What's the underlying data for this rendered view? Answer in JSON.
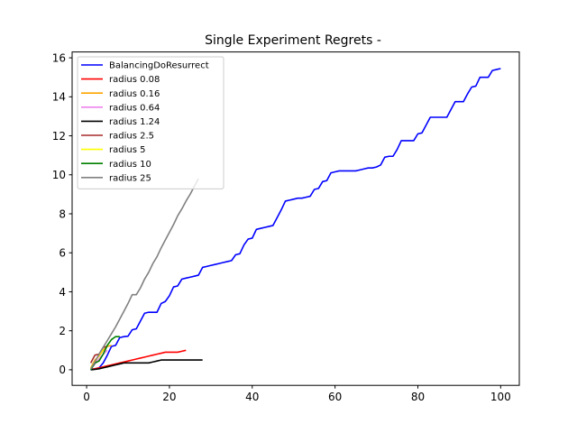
{
  "chart_data": {
    "type": "line",
    "title": "Single Experiment Regrets -",
    "xlabel": "",
    "ylabel": "",
    "xlim": [
      -3.5,
      104.5
    ],
    "ylim": [
      -0.8,
      16.3
    ],
    "xticks": [
      0,
      20,
      40,
      60,
      80,
      100
    ],
    "yticks": [
      0,
      2,
      4,
      6,
      8,
      10,
      12,
      14,
      16
    ],
    "grid": false,
    "legend_position": "top-left",
    "series": [
      {
        "name": "BalancingDoResurrect",
        "color": "#0000ff",
        "x": [
          1,
          2,
          3,
          4,
          5,
          6,
          7,
          8,
          9,
          10,
          11,
          12,
          13,
          14,
          15,
          16,
          17,
          18,
          19,
          20,
          21,
          22,
          23,
          24,
          25,
          26,
          27,
          28,
          29,
          30,
          31,
          32,
          33,
          34,
          35,
          36,
          37,
          38,
          39,
          40,
          41,
          42,
          43,
          44,
          45,
          46,
          47,
          48,
          49,
          50,
          51,
          52,
          53,
          54,
          55,
          56,
          57,
          58,
          59,
          60,
          61,
          62,
          63,
          64,
          65,
          66,
          67,
          68,
          69,
          70,
          71,
          72,
          73,
          74,
          75,
          76,
          77,
          78,
          79,
          80,
          81,
          82,
          83,
          84,
          85,
          86,
          87,
          88,
          89,
          90,
          91,
          92,
          93,
          94,
          95,
          96,
          97,
          98,
          99,
          100
        ],
        "y": [
          0.0,
          0.05,
          0.1,
          0.35,
          0.75,
          1.2,
          1.25,
          1.65,
          1.7,
          1.72,
          2.05,
          2.1,
          2.5,
          2.9,
          2.95,
          2.95,
          2.95,
          3.4,
          3.5,
          3.8,
          4.25,
          4.3,
          4.65,
          4.7,
          4.75,
          4.8,
          4.85,
          5.25,
          5.3,
          5.35,
          5.4,
          5.45,
          5.5,
          5.55,
          5.6,
          5.9,
          5.95,
          6.4,
          6.7,
          6.75,
          7.2,
          7.25,
          7.3,
          7.35,
          7.4,
          7.8,
          8.2,
          8.65,
          8.7,
          8.75,
          8.8,
          8.8,
          8.85,
          8.9,
          9.25,
          9.3,
          9.65,
          9.7,
          10.1,
          10.15,
          10.2,
          10.2,
          10.2,
          10.2,
          10.2,
          10.25,
          10.3,
          10.35,
          10.35,
          10.4,
          10.5,
          10.9,
          10.95,
          10.95,
          11.3,
          11.75,
          11.75,
          11.75,
          11.75,
          12.1,
          12.15,
          12.55,
          12.95,
          12.95,
          12.95,
          12.95,
          12.95,
          13.35,
          13.75,
          13.75,
          13.75,
          14.15,
          14.5,
          14.55,
          15.0,
          15.0,
          15.0,
          15.35,
          15.4,
          15.45
        ]
      },
      {
        "name": "radius 0.08",
        "color": "#ff0000",
        "x": [
          1,
          2,
          3,
          4,
          5,
          6,
          7,
          8,
          9,
          10,
          11,
          12,
          13,
          14,
          15,
          16,
          17,
          18,
          19,
          20,
          21,
          22,
          23,
          24
        ],
        "y": [
          0.02,
          0.05,
          0.1,
          0.15,
          0.2,
          0.25,
          0.3,
          0.35,
          0.4,
          0.45,
          0.5,
          0.55,
          0.6,
          0.65,
          0.7,
          0.75,
          0.8,
          0.85,
          0.9,
          0.9,
          0.9,
          0.9,
          0.95,
          1.0
        ]
      },
      {
        "name": "radius 0.16",
        "color": "#ffa500",
        "x": [
          1,
          2,
          3,
          4,
          5,
          6
        ],
        "y": [
          0.1,
          0.5,
          0.7,
          1.0,
          1.2,
          1.25
        ]
      },
      {
        "name": "radius 0.64",
        "color": "#ee82ee",
        "x": [
          1,
          2,
          3,
          4,
          5
        ],
        "y": [
          0.05,
          0.3,
          0.55,
          0.8,
          1.0
        ]
      },
      {
        "name": "radius 1.24",
        "color": "#000000",
        "x": [
          1,
          2,
          3,
          4,
          5,
          6,
          7,
          8,
          9,
          10,
          11,
          12,
          13,
          14,
          15,
          16,
          17,
          18,
          19,
          20,
          21,
          22,
          23,
          24,
          25,
          26,
          27,
          28
        ],
        "y": [
          0.0,
          0.02,
          0.05,
          0.1,
          0.15,
          0.2,
          0.25,
          0.3,
          0.35,
          0.35,
          0.35,
          0.35,
          0.35,
          0.35,
          0.35,
          0.4,
          0.45,
          0.5,
          0.5,
          0.5,
          0.5,
          0.5,
          0.5,
          0.5,
          0.5,
          0.5,
          0.5,
          0.5
        ]
      },
      {
        "name": "radius 2.5",
        "color": "#a52a2a",
        "x": [
          1,
          2,
          3,
          4,
          5
        ],
        "y": [
          0.35,
          0.75,
          0.8,
          1.15,
          1.2
        ]
      },
      {
        "name": "radius 5",
        "color": "#ffff00",
        "x": [
          1,
          2,
          3,
          4
        ],
        "y": [
          0.1,
          0.4,
          0.75,
          1.05
        ]
      },
      {
        "name": "radius 10",
        "color": "#008000",
        "x": [
          1,
          2,
          3,
          4,
          5,
          6,
          7,
          8
        ],
        "y": [
          0.0,
          0.35,
          0.45,
          0.8,
          1.25,
          1.55,
          1.7,
          1.7
        ]
      },
      {
        "name": "radius 25",
        "color": "#808080",
        "x": [
          1,
          2,
          3,
          4,
          5,
          6,
          7,
          8,
          9,
          10,
          11,
          12,
          13,
          14,
          15,
          16,
          17,
          18,
          19,
          20,
          21,
          22,
          23,
          24,
          25,
          26,
          27
        ],
        "y": [
          0.05,
          0.4,
          0.8,
          1.15,
          1.5,
          1.85,
          2.2,
          2.6,
          3.0,
          3.4,
          3.85,
          3.85,
          4.2,
          4.65,
          5.0,
          5.45,
          5.8,
          6.25,
          6.65,
          7.05,
          7.45,
          7.9,
          8.25,
          8.65,
          9.0,
          9.4,
          9.8
        ]
      }
    ]
  }
}
